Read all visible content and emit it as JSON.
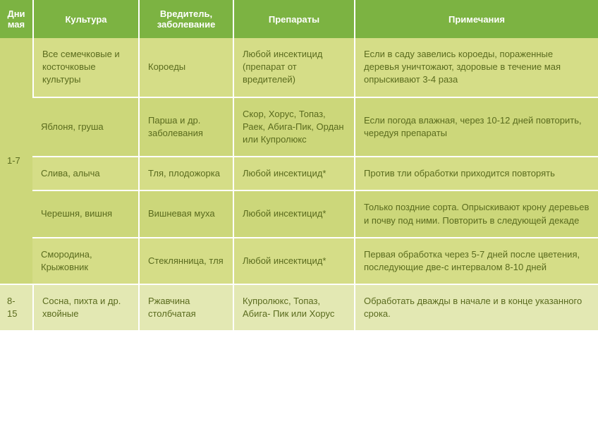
{
  "columns": [
    "Дни мая",
    "Культура",
    "Вредитель, заболевание",
    "Препараты",
    "Примечания"
  ],
  "groups": [
    {
      "period": "1-7",
      "rows": [
        {
          "culture": "Все семечковые и косточковые культуры",
          "pest": "Короеды",
          "drug": "Любой инсектицид (препарат от вредителей)",
          "note": "Если в саду завелись короеды, пораженные деревья уничтожают, здоровые в течение мая опрыскивают 3-4 раза"
        },
        {
          "culture": "Яблоня, груша",
          "pest": "Парша и др. заболевания",
          "drug": "Скор, Хорус, Топаз, Раек, Абига-Пик, Ордан или Купролюкс",
          "note": "Если погода влажная, через 10-12 дней повторить, чередуя препараты"
        },
        {
          "culture": "Слива, алыча",
          "pest": "Тля, плодожорка",
          "drug": "Любой инсектицид*",
          "note": "Против тли обработки приходится повторять"
        },
        {
          "culture": "Черешня, вишня",
          "pest": "Вишневая муха",
          "drug": "Любой инсектицид*",
          "note": "Только поздние сорта. Опрыскивают крону деревьев и почву под ними. Повторить в следующей декаде"
        },
        {
          "culture": "Смородина, Крыжовник",
          "pest": "Стеклянница, тля",
          "drug": "Любой инсектицид*",
          "note": "Первая обработка через 5-7 дней после цветения, последующие две-с интервалом 8-10 дней"
        }
      ]
    },
    {
      "period": "8-15",
      "rows": [
        {
          "culture": "Сосна, пихта и др. хвойные",
          "pest": "Ржавчина столбчатая",
          "drug": "Купролюкс, Топаз, Абига- Пик или Хорус",
          "note": "Обработать дважды в начале и в конце указанного срока."
        }
      ]
    }
  ]
}
